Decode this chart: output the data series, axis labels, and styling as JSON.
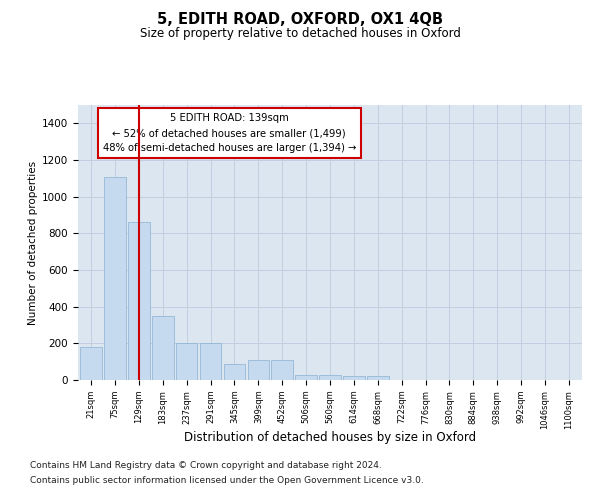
{
  "title": "5, EDITH ROAD, OXFORD, OX1 4QB",
  "subtitle": "Size of property relative to detached houses in Oxford",
  "xlabel": "Distribution of detached houses by size in Oxford",
  "ylabel": "Number of detached properties",
  "footnote1": "Contains HM Land Registry data © Crown copyright and database right 2024.",
  "footnote2": "Contains public sector information licensed under the Open Government Licence v3.0.",
  "annotation_line1": "5 EDITH ROAD: 139sqm",
  "annotation_line2": "← 52% of detached houses are smaller (1,499)",
  "annotation_line3": "48% of semi-detached houses are larger (1,394) →",
  "bar_color": "#c5d9ef",
  "bar_edge_color": "#8ab0d0",
  "marker_color": "#cc0000",
  "background_color": "#dce6f0",
  "grid_color": "#c2cfe0",
  "categories": [
    "21sqm",
    "75sqm",
    "129sqm",
    "183sqm",
    "237sqm",
    "291sqm",
    "345sqm",
    "399sqm",
    "452sqm",
    "506sqm",
    "560sqm",
    "614sqm",
    "668sqm",
    "722sqm",
    "776sqm",
    "830sqm",
    "884sqm",
    "938sqm",
    "992sqm",
    "1046sqm",
    "1100sqm"
  ],
  "values": [
    180,
    1105,
    860,
    350,
    200,
    200,
    90,
    110,
    110,
    30,
    30,
    20,
    20,
    2,
    0,
    0,
    0,
    0,
    0,
    0,
    0
  ],
  "marker_bin_index": 2,
  "ylim_max": 1500,
  "yticks": [
    0,
    200,
    400,
    600,
    800,
    1000,
    1200,
    1400
  ]
}
